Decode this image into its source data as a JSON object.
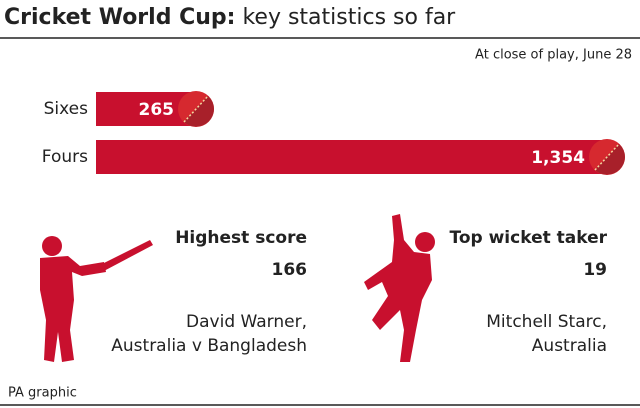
{
  "chart_data": {
    "type": "bar",
    "orientation": "horizontal",
    "title": "Cricket World Cup:",
    "subtitle": "key statistics so far",
    "note": "At close of play, June 28",
    "categories": [
      "Sixes",
      "Fours"
    ],
    "values": [
      265,
      1354
    ],
    "value_labels": [
      "265",
      "1,354"
    ],
    "color": "#c8102e"
  },
  "panels": [
    {
      "heading": "Highest score",
      "stat": "166",
      "name": "David Warner,",
      "detail": "Australia v Bangladesh"
    },
    {
      "heading": "Top wicket taker",
      "stat": "19",
      "name": "Mitchell Starc,",
      "detail": "Australia"
    }
  ],
  "footer": "PA graphic"
}
